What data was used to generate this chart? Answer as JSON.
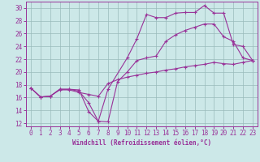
{
  "xlabel": "Windchill (Refroidissement éolien,°C)",
  "bg_color": "#cce8e8",
  "grid_color": "#99bbbb",
  "line_color": "#993399",
  "spine_color": "#993399",
  "xlim": [
    -0.5,
    23.5
  ],
  "ylim": [
    11.5,
    31.0
  ],
  "yticks": [
    12,
    14,
    16,
    18,
    20,
    22,
    24,
    26,
    28,
    30
  ],
  "xticks": [
    0,
    1,
    2,
    3,
    4,
    5,
    6,
    7,
    8,
    9,
    10,
    11,
    12,
    13,
    14,
    15,
    16,
    17,
    18,
    19,
    20,
    21,
    22,
    23
  ],
  "curve1_x": [
    0,
    1,
    2,
    3,
    4,
    5,
    6,
    7,
    8,
    10,
    11,
    12,
    13,
    14,
    15,
    16,
    17,
    18,
    19,
    20,
    21,
    22,
    23
  ],
  "curve1_y": [
    17.5,
    16.1,
    16.2,
    17.3,
    17.3,
    17.2,
    13.8,
    12.3,
    17.3,
    22.2,
    25.2,
    29.0,
    28.5,
    28.5,
    29.2,
    29.3,
    29.3,
    30.4,
    29.2,
    29.2,
    24.3,
    24.0,
    21.8
  ],
  "curve2_x": [
    0,
    1,
    2,
    3,
    4,
    5,
    6,
    7,
    8,
    9,
    10,
    11,
    12,
    13,
    14,
    15,
    16,
    17,
    18,
    19,
    20,
    21,
    22,
    23
  ],
  "curve2_y": [
    17.5,
    16.1,
    16.2,
    17.3,
    17.3,
    17.0,
    15.2,
    12.3,
    12.2,
    18.5,
    20.0,
    21.8,
    22.2,
    22.5,
    24.8,
    25.8,
    26.5,
    27.0,
    27.5,
    27.5,
    25.5,
    24.8,
    22.2,
    21.8
  ],
  "curve3_x": [
    0,
    1,
    2,
    3,
    4,
    5,
    6,
    7,
    8,
    9,
    10,
    11,
    12,
    13,
    14,
    15,
    16,
    17,
    18,
    19,
    20,
    21,
    22,
    23
  ],
  "curve3_y": [
    17.5,
    16.1,
    16.2,
    17.2,
    17.2,
    16.8,
    16.5,
    16.2,
    18.2,
    18.8,
    19.2,
    19.5,
    19.8,
    20.0,
    20.3,
    20.5,
    20.8,
    21.0,
    21.2,
    21.5,
    21.3,
    21.2,
    21.5,
    21.8
  ],
  "lw": 0.8,
  "ms": 3.0,
  "tick_fontsize": 5.5,
  "xlabel_fontsize": 5.5
}
